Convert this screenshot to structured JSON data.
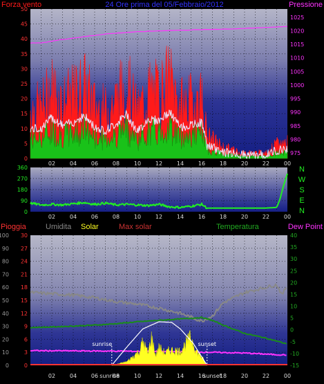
{
  "header": {
    "left_title": "Forza vento",
    "center_title": "24 Ore prima del 05/Febbraio/2012",
    "right_title": "Pressione"
  },
  "legend_lower": {
    "rain": "Pioggia",
    "humidity": "Umidita",
    "solar": "Solar",
    "max_solar": "Max solar",
    "temperature": "Temperatura",
    "dew_point": "Dew Point"
  },
  "compass": [
    "N",
    "W",
    "S",
    "E",
    "N"
  ],
  "annotations": {
    "sunrise": "sunrise",
    "sunset": "sunset"
  },
  "colors": {
    "wind": "#ff1a1a",
    "wind_avg": "#e8e8ff",
    "gust_base": "#19c219",
    "pressure": "#ff33ff",
    "direction": "#22ee22",
    "solar": "#ffff22",
    "max_solar": "#ffffff",
    "humidity": "#888888",
    "temperature": "#1a8c1a",
    "dew_point": "#ff33ff",
    "rain": "#ff3333",
    "axis_left": "#ff3333",
    "axis_right_top": "#ff33ff",
    "axis_right_bottom": "#22aa22"
  },
  "chart_data": [
    {
      "type": "line",
      "name": "wind_pressure",
      "title": "24 Ore prima del 05/Febbraio/2012",
      "x_ticks": [
        "02",
        "04",
        "06",
        "08",
        "10",
        "12",
        "14",
        "16",
        "18",
        "20",
        "22",
        "00"
      ],
      "y_left": {
        "label": "Forza vento",
        "ticks": [
          "0",
          "5",
          "10",
          "15",
          "20",
          "25",
          "30",
          "35",
          "40",
          "45",
          "50"
        ],
        "ylim": [
          0,
          50
        ]
      },
      "y_right": {
        "label": "Pressione",
        "ticks": [
          "975",
          "980",
          "985",
          "990",
          "995",
          "1000",
          "1005",
          "1010",
          "1015",
          "1020",
          "1025"
        ],
        "ylim": [
          973,
          1028
        ]
      },
      "series": [
        {
          "name": "Pressione",
          "axis": "right",
          "x": [
            1,
            3,
            5,
            7,
            9,
            11,
            13,
            15,
            17,
            19,
            21,
            23,
            24
          ],
          "values": [
            1015.5,
            1016.8,
            1017.8,
            1018.8,
            1019.4,
            1019.8,
            1020.1,
            1020.3,
            1020.5,
            1020.7,
            1021.0,
            1021.4,
            1021.6
          ]
        },
        {
          "name": "Forza vento",
          "x": [
            1,
            2,
            3,
            4,
            5,
            6,
            7,
            8,
            9,
            10,
            11,
            12,
            13,
            14,
            15,
            16,
            16.5,
            18,
            20,
            22,
            23,
            24
          ],
          "values": [
            18,
            25,
            20,
            22,
            26,
            19,
            17,
            21,
            27,
            16,
            24,
            23,
            28,
            19,
            20,
            22,
            8,
            4,
            2,
            2,
            5,
            6
          ]
        }
      ]
    },
    {
      "type": "line",
      "name": "wind_direction",
      "x_ticks": [
        "02",
        "04",
        "06",
        "08",
        "10",
        "12",
        "14",
        "16",
        "18",
        "20",
        "22",
        "00"
      ],
      "y_left": {
        "ticks": [
          "0",
          "90",
          "180",
          "270",
          "360"
        ],
        "ylim": [
          0,
          360
        ]
      },
      "series": [
        {
          "name": "Direzione",
          "x": [
            0,
            1,
            2,
            3,
            4,
            5,
            6,
            7,
            8,
            9,
            10,
            11,
            12,
            13,
            14,
            15,
            16,
            16.5,
            17,
            20,
            22,
            23,
            23.3,
            23.6,
            24
          ],
          "values": [
            70,
            55,
            60,
            55,
            65,
            75,
            60,
            70,
            55,
            60,
            55,
            50,
            60,
            40,
            35,
            45,
            60,
            30,
            30,
            30,
            30,
            35,
            100,
            200,
            310
          ]
        }
      ]
    },
    {
      "type": "line",
      "name": "humidity_temp_solar",
      "x_ticks": [
        "02",
        "04",
        "06",
        "08",
        "10",
        "12",
        "14",
        "16",
        "18",
        "20",
        "22",
        "00"
      ],
      "x_labels_special": {
        "sunrise": "sunrise",
        "sunset": "sunset"
      },
      "y_left_humidity": {
        "label": "Umidita",
        "ticks": [
          "0",
          "10",
          "20",
          "30",
          "40",
          "50",
          "60",
          "70",
          "80",
          "90",
          "100"
        ],
        "ylim": [
          0,
          100
        ]
      },
      "y_left_rain": {
        "label": "Pioggia",
        "ticks": [
          "0",
          "3",
          "6",
          "9",
          "12",
          "15",
          "18",
          "21",
          "24",
          "27",
          "30"
        ],
        "ylim": [
          0,
          30
        ]
      },
      "y_right": {
        "label": "Temperatura",
        "ticks": [
          "-15",
          "-10",
          "-5",
          "0",
          "5",
          "10",
          "15",
          "20",
          "25",
          "30",
          "35",
          "40"
        ],
        "ylim": [
          -15,
          40
        ]
      },
      "series": [
        {
          "name": "Umidita",
          "axis": "humidity",
          "x": [
            0,
            2,
            4,
            6,
            8,
            10,
            12,
            14,
            15,
            16,
            17,
            18,
            20,
            21,
            22,
            23,
            23.5,
            24
          ],
          "values": [
            56,
            55,
            54,
            52,
            49,
            47,
            44,
            40,
            37,
            34,
            38,
            48,
            56,
            58,
            60,
            62,
            54,
            62
          ]
        },
        {
          "name": "Temperatura",
          "axis": "right",
          "x": [
            0,
            2,
            4,
            6,
            8,
            10,
            12,
            14,
            16,
            17,
            18,
            20,
            22,
            24
          ],
          "values": [
            1,
            1.2,
            1.6,
            2.0,
            2.6,
            3.4,
            4.0,
            4.6,
            5.2,
            4.0,
            2.0,
            -1.5,
            -3.5,
            -6
          ]
        },
        {
          "name": "Dew Point",
          "axis": "right",
          "x": [
            0,
            4,
            8,
            12,
            16,
            20,
            23,
            24
          ],
          "values": [
            -8.8,
            -8.9,
            -9.0,
            -9.2,
            -9.4,
            -9.8,
            -10.5,
            -10.6
          ]
        },
        {
          "name": "Solar",
          "axis": "humidity",
          "x": [
            7.6,
            9,
            10.2,
            10.5,
            11,
            11.3,
            11.7,
            12,
            12.6,
            13,
            14,
            14.5,
            15,
            15.5,
            16,
            16.5
          ],
          "values": [
            0,
            3,
            12,
            20,
            10,
            24,
            8,
            15,
            10,
            13,
            12,
            18,
            24,
            12,
            7,
            0
          ]
        },
        {
          "name": "Max solar",
          "axis": "humidity",
          "x": [
            7.6,
            9,
            10.5,
            12,
            13.2,
            14,
            15.2,
            16.5
          ],
          "values": [
            0,
            14,
            28,
            33.5,
            33,
            28,
            17,
            0
          ]
        },
        {
          "name": "Pioggia",
          "axis": "rain",
          "x": [
            0,
            24
          ],
          "values": [
            0,
            0
          ]
        }
      ]
    }
  ]
}
